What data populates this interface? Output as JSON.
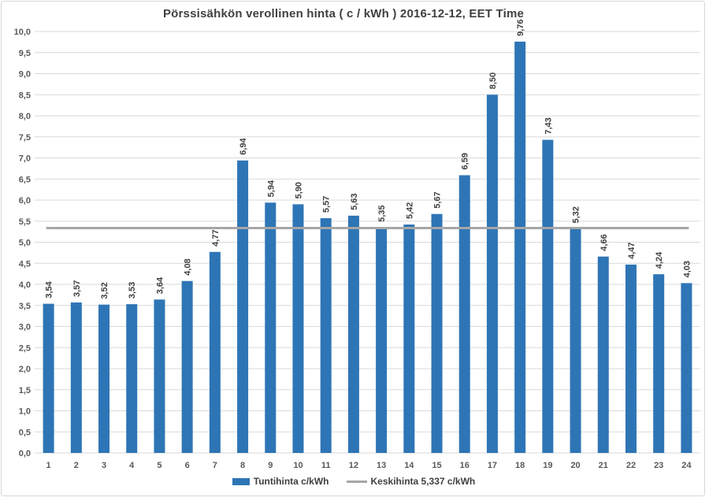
{
  "chart_data": {
    "type": "bar",
    "title": "Pörssisähkön verollinen hinta ( c / kWh ) 2016-12-12, EET Time",
    "categories": [
      "1",
      "2",
      "3",
      "4",
      "5",
      "6",
      "7",
      "8",
      "9",
      "10",
      "11",
      "12",
      "13",
      "14",
      "15",
      "16",
      "17",
      "18",
      "19",
      "20",
      "21",
      "22",
      "23",
      "24"
    ],
    "series": [
      {
        "name": "Tuntihinta c/kWh",
        "color": "#2e75b6",
        "values": [
          3.54,
          3.57,
          3.52,
          3.53,
          3.64,
          4.08,
          4.77,
          6.94,
          5.94,
          5.9,
          5.57,
          5.63,
          5.35,
          5.42,
          5.67,
          6.59,
          8.5,
          9.76,
          7.43,
          5.32,
          4.66,
          4.47,
          4.24,
          4.03
        ]
      }
    ],
    "average_line": {
      "name": "Keskihinta 5,337 c/kWh",
      "value": 5.337,
      "color": "#a6a6a6"
    },
    "xlabel": "",
    "ylabel": "",
    "ylim": [
      0,
      10
    ],
    "ytick_step": 0.5,
    "grid": true,
    "legend_position": "bottom",
    "decimal_separator": ",",
    "value_label_decimals": 2,
    "colors": {
      "bar": "#2e75b6",
      "average_line": "#a6a6a6",
      "gridline": "#d9d9d9",
      "tick_label": "#595959",
      "value_label": "#404040",
      "title": "#404040",
      "panel_border": "#d7d7d7",
      "background": "#ffffff"
    }
  },
  "legend": {
    "items": [
      {
        "label": "Tuntihinta c/kWh",
        "swatch": "bar"
      },
      {
        "label": "Keskihinta 5,337 c/kWh",
        "swatch": "line"
      }
    ]
  }
}
